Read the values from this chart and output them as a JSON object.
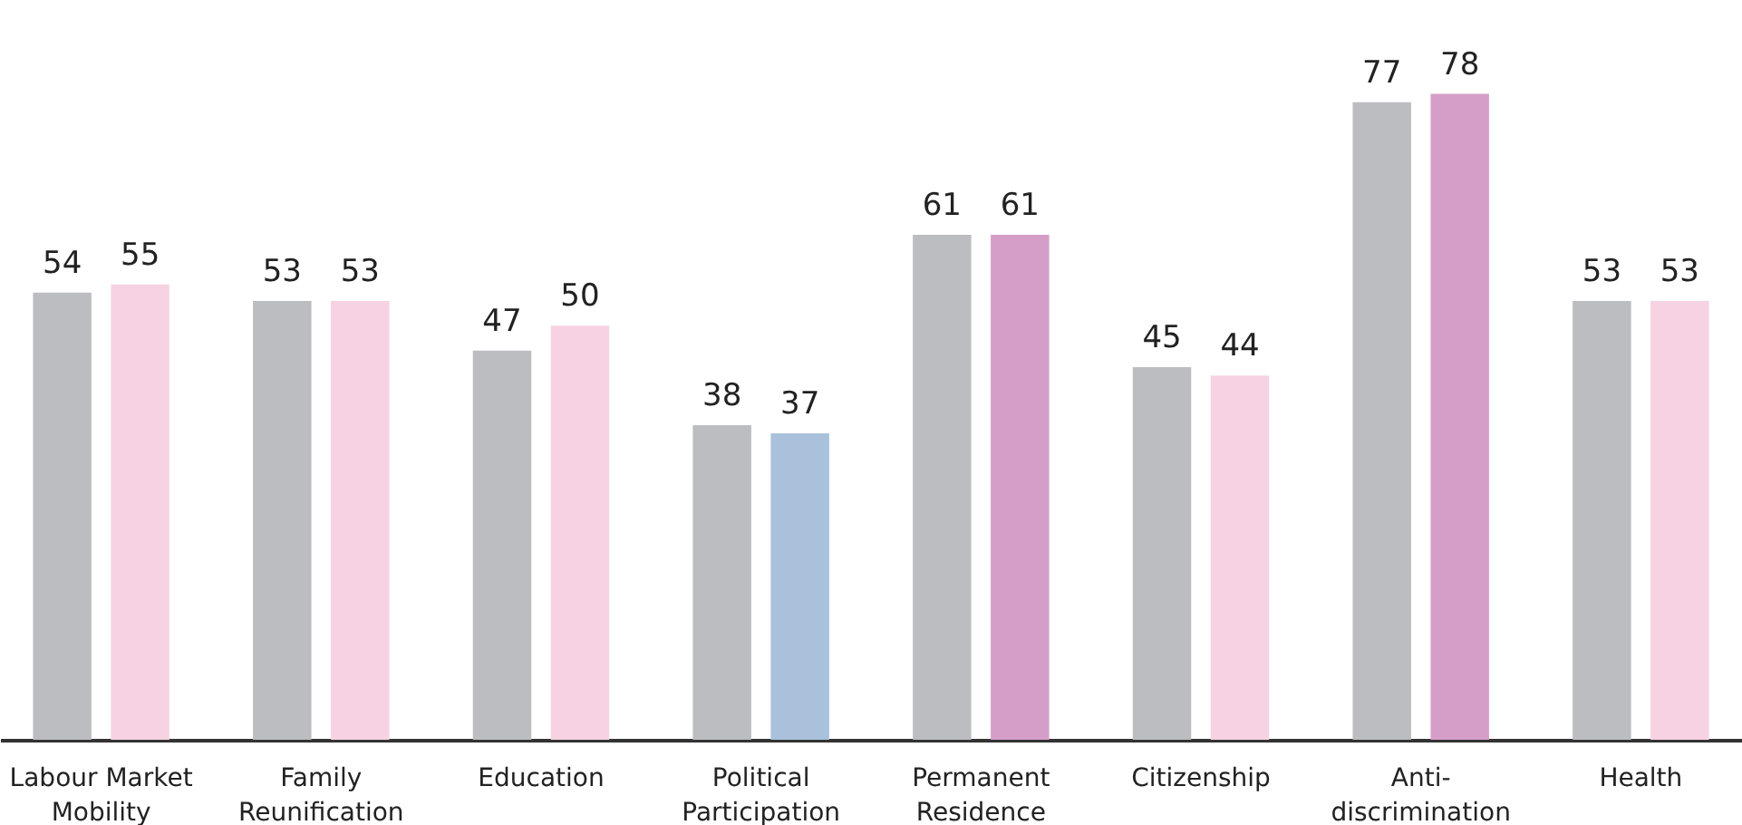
{
  "chart_data": {
    "type": "bar",
    "categories": [
      "Labour Market Mobility",
      "Family Reunification",
      "Education",
      "Political Participation",
      "Permanent Residence",
      "Citizenship",
      "Anti-discrimination",
      "Health"
    ],
    "series": [
      {
        "color": "#bcbdc1",
        "values": [
          54,
          53,
          47,
          38,
          61,
          45,
          77,
          53
        ]
      },
      {
        "colors": [
          "#f7d2e2",
          "#f7d2e2",
          "#f7d2e2",
          "#a9c1da",
          "#d59ec8",
          "#f7d2e2",
          "#d59ec8",
          "#f7d2e2"
        ],
        "values": [
          55,
          53,
          50,
          37,
          61,
          44,
          78,
          53
        ]
      }
    ],
    "data_labels": true
  }
}
